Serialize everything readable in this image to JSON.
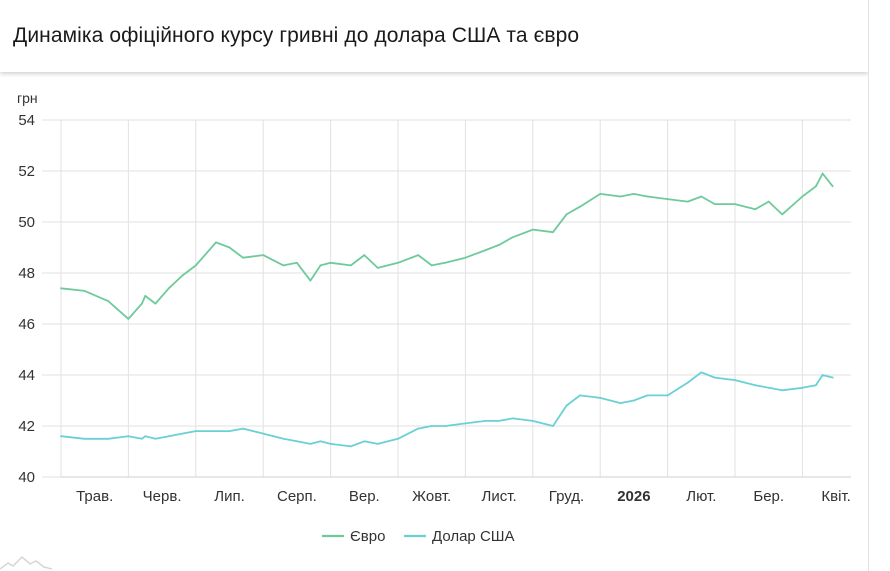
{
  "header": {
    "title": "Динаміка офіційного курсу гривні до долара США та євро"
  },
  "logo_icon": "mountain-logo-icon",
  "chart_data": {
    "type": "line",
    "title": "Динаміка офіційного курсу гривні до долара США та євро",
    "ylabel": "грн",
    "ylim": [
      40,
      54
    ],
    "y_ticks": [
      40,
      42,
      44,
      46,
      48,
      50,
      52,
      54
    ],
    "x_tick_labels": [
      {
        "label": "Трав.",
        "bold": false
      },
      {
        "label": "Черв.",
        "bold": false
      },
      {
        "label": "Лип.",
        "bold": false
      },
      {
        "label": "Серп.",
        "bold": false
      },
      {
        "label": "Вер.",
        "bold": false
      },
      {
        "label": "Жовт.",
        "bold": false
      },
      {
        "label": "Лист.",
        "bold": false
      },
      {
        "label": "Груд.",
        "bold": false
      },
      {
        "label": "2026",
        "bold": true
      },
      {
        "label": "Лют.",
        "bold": false
      },
      {
        "label": "Бер.",
        "bold": false
      },
      {
        "label": "Квіт.",
        "bold": false
      }
    ],
    "x_positions": [
      0,
      0.35,
      0.7,
      1,
      1.2,
      1.25,
      1.4,
      1.6,
      1.8,
      2,
      2.3,
      2.5,
      2.7,
      3,
      3.3,
      3.5,
      3.7,
      3.85,
      4,
      4.3,
      4.5,
      4.7,
      5,
      5.3,
      5.5,
      5.7,
      6,
      6.3,
      6.5,
      6.7,
      7,
      7.3,
      7.5,
      7.7,
      8,
      8.3,
      8.5,
      8.7,
      9,
      9.3,
      9.5,
      9.7,
      10,
      10.3,
      10.5,
      10.7,
      11,
      11.2,
      11.3,
      11.45
    ],
    "grid": true,
    "legend_position": "bottom-center",
    "series": [
      {
        "name": "Євро",
        "color": "#6fca9b",
        "values": [
          47.4,
          47.3,
          46.9,
          46.2,
          46.8,
          47.1,
          46.8,
          47.4,
          47.9,
          48.3,
          49.2,
          49.0,
          48.6,
          48.7,
          48.3,
          48.4,
          47.7,
          48.3,
          48.4,
          48.3,
          48.7,
          48.2,
          48.4,
          48.7,
          48.3,
          48.4,
          48.6,
          48.9,
          49.1,
          49.4,
          49.7,
          49.6,
          50.3,
          50.6,
          51.1,
          51.0,
          51.1,
          51.0,
          50.9,
          50.8,
          51.0,
          50.7,
          50.7,
          50.5,
          50.8,
          50.3,
          51.0,
          51.4,
          51.9,
          51.4
        ]
      },
      {
        "name": "Долар США",
        "color": "#6ad0d5",
        "values": [
          41.6,
          41.5,
          41.5,
          41.6,
          41.5,
          41.6,
          41.5,
          41.6,
          41.7,
          41.8,
          41.8,
          41.8,
          41.9,
          41.7,
          41.5,
          41.4,
          41.3,
          41.4,
          41.3,
          41.2,
          41.4,
          41.3,
          41.5,
          41.9,
          42.0,
          42.0,
          42.1,
          42.2,
          42.2,
          42.3,
          42.2,
          42.0,
          42.8,
          43.2,
          43.1,
          42.9,
          43.0,
          43.2,
          43.2,
          43.7,
          44.1,
          43.9,
          43.8,
          43.6,
          43.5,
          43.4,
          43.5,
          43.6,
          44.0,
          43.9
        ]
      }
    ]
  }
}
